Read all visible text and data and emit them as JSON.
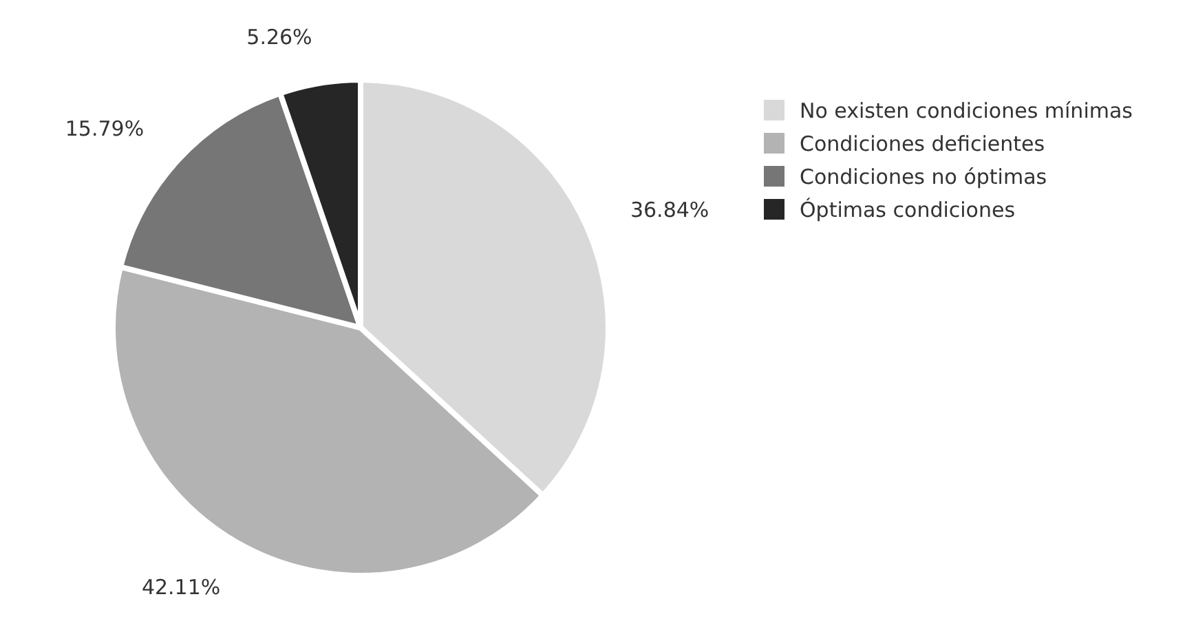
{
  "chart_data": {
    "type": "pie",
    "categories": [
      "No existen condiciones mínimas",
      "Condiciones deficientes",
      "Condiciones no óptimas",
      "Óptimas condiciones"
    ],
    "values": [
      36.84,
      42.11,
      15.79,
      5.26
    ],
    "colors": [
      "#d9d9d9",
      "#b3b3b3",
      "#767676",
      "#262626"
    ],
    "value_labels": [
      "36.84%",
      "42.11%",
      "15.79%",
      "5.26%"
    ],
    "legend": "right"
  }
}
